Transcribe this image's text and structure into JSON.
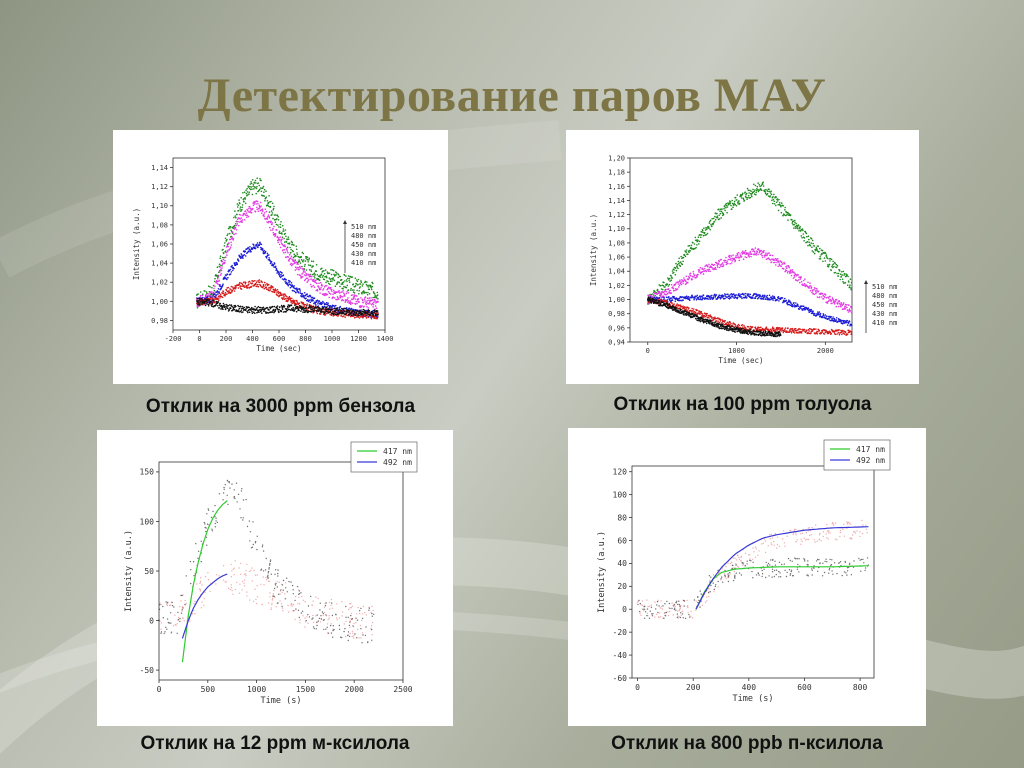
{
  "title": "Детектирование паров МАУ",
  "captions": [
    "Отклик на 3000 ppm бензола",
    "Отклик на 100 ppm толуола",
    "Отклик на 12 ppm м-ксилола",
    "Отклик на 800 ppb п-ксилола"
  ],
  "colors": {
    "title": "#7d7545",
    "green": "#1d8a1d",
    "magenta": "#e23ae2",
    "blue": "#1c1cd6",
    "red": "#d41a1a",
    "black": "#111111",
    "fit_green": "#2ecc2e",
    "fit_blue": "#3a3ad8"
  },
  "chart_data": [
    {
      "type": "scatter",
      "xlabel": "Time (sec)",
      "ylabel": "Intensity (a.u.)",
      "xlim": [
        -200,
        1400
      ],
      "ylim": [
        0.97,
        1.15
      ],
      "xticks": [
        -200,
        0,
        200,
        400,
        600,
        800,
        1000,
        1200,
        1400
      ],
      "yticks": [
        0.98,
        1.0,
        1.02,
        1.04,
        1.06,
        1.08,
        1.1,
        1.12,
        1.14
      ],
      "legend": {
        "position": "right",
        "items": [
          "510 nm",
          "480 nm",
          "450 nm",
          "430 nm",
          "410 nm"
        ]
      },
      "series": [
        {
          "name": "510 nm",
          "color": "green",
          "x": [
            -20,
            100,
            200,
            300,
            400,
            450,
            500,
            600,
            700,
            800,
            900,
            1000,
            1100,
            1200,
            1350
          ],
          "y": [
            1.0,
            1.01,
            1.06,
            1.1,
            1.12,
            1.122,
            1.11,
            1.08,
            1.055,
            1.04,
            1.03,
            1.025,
            1.02,
            1.015,
            1.01
          ]
        },
        {
          "name": "480 nm",
          "color": "magenta",
          "x": [
            -20,
            100,
            200,
            300,
            400,
            450,
            500,
            600,
            700,
            800,
            900,
            1000,
            1100,
            1200,
            1350
          ],
          "y": [
            1.0,
            1.005,
            1.05,
            1.085,
            1.098,
            1.1,
            1.09,
            1.065,
            1.04,
            1.025,
            1.015,
            1.008,
            1.005,
            1.0,
            0.997
          ]
        },
        {
          "name": "450 nm",
          "color": "blue",
          "x": [
            -20,
            100,
            200,
            300,
            400,
            450,
            500,
            600,
            700,
            800,
            900,
            1000,
            1100,
            1200,
            1350
          ],
          "y": [
            1.0,
            1.002,
            1.025,
            1.045,
            1.057,
            1.06,
            1.05,
            1.03,
            1.015,
            1.005,
            0.998,
            0.993,
            0.99,
            0.988,
            0.986
          ]
        },
        {
          "name": "430 nm",
          "color": "red",
          "x": [
            -20,
            100,
            200,
            300,
            400,
            450,
            500,
            600,
            700,
            800,
            900,
            1000,
            1100,
            1200,
            1350
          ],
          "y": [
            1.0,
            1.0,
            1.01,
            1.016,
            1.018,
            1.019,
            1.016,
            1.008,
            1.0,
            0.994,
            0.99,
            0.988,
            0.987,
            0.986,
            0.985
          ]
        },
        {
          "name": "410 nm",
          "color": "black",
          "x": [
            -20,
            100,
            200,
            300,
            400,
            450,
            500,
            600,
            700,
            800,
            900,
            1000,
            1100,
            1200,
            1350
          ],
          "y": [
            1.0,
            0.998,
            0.994,
            0.992,
            0.991,
            0.991,
            0.991,
            0.992,
            0.993,
            0.992,
            0.991,
            0.99,
            0.989,
            0.988,
            0.988
          ]
        }
      ]
    },
    {
      "type": "scatter",
      "xlabel": "Time (sec)",
      "ylabel": "Intensity (a.u.)",
      "xlim": [
        -200,
        2300
      ],
      "ylim": [
        0.94,
        1.2
      ],
      "xticks": [
        0,
        1000,
        2000
      ],
      "yticks": [
        0.94,
        0.96,
        0.98,
        1.0,
        1.02,
        1.04,
        1.06,
        1.08,
        1.1,
        1.12,
        1.14,
        1.16,
        1.18,
        1.2
      ],
      "legend": {
        "position": "right",
        "items": [
          "510 nm",
          "480 nm",
          "450 nm",
          "430 nm",
          "410 nm"
        ]
      },
      "series": [
        {
          "name": "510 nm",
          "color": "green",
          "x": [
            0,
            200,
            400,
            600,
            800,
            1000,
            1200,
            1300,
            1500,
            1700,
            1900,
            2100,
            2300
          ],
          "y": [
            1.0,
            1.02,
            1.06,
            1.09,
            1.12,
            1.14,
            1.155,
            1.16,
            1.13,
            1.1,
            1.07,
            1.045,
            1.02
          ]
        },
        {
          "name": "480 nm",
          "color": "magenta",
          "x": [
            0,
            200,
            400,
            600,
            800,
            1000,
            1200,
            1300,
            1500,
            1700,
            1900,
            2100,
            2300
          ],
          "y": [
            1.0,
            1.01,
            1.025,
            1.04,
            1.05,
            1.06,
            1.067,
            1.065,
            1.05,
            1.03,
            1.01,
            0.995,
            0.985
          ]
        },
        {
          "name": "450 nm",
          "color": "blue",
          "x": [
            0,
            200,
            400,
            600,
            800,
            1000,
            1200,
            1300,
            1500,
            1700,
            1900,
            2100,
            2300
          ],
          "y": [
            1.0,
            1.0,
            1.002,
            1.003,
            1.004,
            1.005,
            1.005,
            1.004,
            1.0,
            0.99,
            0.98,
            0.972,
            0.965
          ]
        },
        {
          "name": "430 nm",
          "color": "red",
          "x": [
            0,
            200,
            400,
            600,
            800,
            1000,
            1200,
            1300,
            1500,
            1700,
            1900,
            2100,
            2300
          ],
          "y": [
            1.0,
            0.995,
            0.988,
            0.98,
            0.97,
            0.962,
            0.958,
            0.958,
            0.957,
            0.956,
            0.955,
            0.954,
            0.953
          ]
        },
        {
          "name": "410 nm",
          "color": "black",
          "x": [
            0,
            200,
            400,
            600,
            800,
            1000,
            1200,
            1300,
            1500
          ],
          "y": [
            1.0,
            0.992,
            0.982,
            0.972,
            0.963,
            0.957,
            0.953,
            0.952,
            0.951
          ]
        }
      ]
    },
    {
      "type": "scatter",
      "xlabel": "Time (s)",
      "ylabel": "Intensity (a.u.)",
      "xlim": [
        0,
        2500
      ],
      "ylim": [
        -60,
        160
      ],
      "xticks": [
        0,
        500,
        1000,
        1500,
        2000,
        2500
      ],
      "yticks": [
        -50,
        0,
        50,
        100,
        150
      ],
      "legend": {
        "position": "top-right",
        "items": [
          "417 nm",
          "492 nm"
        ]
      },
      "series": [
        {
          "name": "417 nm",
          "color": "fit_green",
          "x": [
            240,
            300,
            350,
            400,
            450,
            500,
            550,
            600,
            650,
            700
          ],
          "y": [
            -42,
            5,
            35,
            58,
            77,
            92,
            103,
            111,
            117,
            121
          ]
        },
        {
          "name": "492 nm",
          "color": "fit_blue",
          "x": [
            240,
            300,
            350,
            400,
            450,
            500,
            550,
            600,
            650,
            700
          ],
          "y": [
            -18,
            0,
            12,
            21,
            28,
            34,
            38,
            42,
            45,
            47
          ]
        }
      ],
      "scatter_series": [
        {
          "color": "black",
          "x": [
            0,
            200,
            300,
            500,
            700,
            800,
            900,
            1000,
            1200,
            1500,
            1800,
            2000,
            2200
          ],
          "y": [
            0,
            2,
            40,
            95,
            125,
            130,
            105,
            70,
            35,
            10,
            0,
            -5,
            -5
          ]
        },
        {
          "color": "red",
          "x": [
            0,
            200,
            400,
            600,
            800,
            1000,
            1200,
            1500,
            2000,
            2200
          ],
          "y": [
            0,
            5,
            25,
            40,
            45,
            35,
            25,
            10,
            0,
            0
          ]
        }
      ]
    },
    {
      "type": "scatter",
      "xlabel": "Time (s)",
      "ylabel": "Intensity (a.u.)",
      "xlim": [
        -20,
        850
      ],
      "ylim": [
        -60,
        125
      ],
      "xticks": [
        0,
        200,
        400,
        600,
        800
      ],
      "yticks": [
        -60,
        -40,
        -20,
        0,
        20,
        40,
        60,
        80,
        100,
        120
      ],
      "legend": {
        "position": "top-right",
        "items": [
          "417 nm",
          "492 nm"
        ]
      },
      "series": [
        {
          "name": "417 nm",
          "color": "fit_green",
          "x": [
            210,
            240,
            270,
            300,
            350,
            400,
            500,
            600,
            700,
            830
          ],
          "y": [
            0,
            15,
            26,
            32,
            35,
            36,
            37,
            37,
            37,
            38
          ]
        },
        {
          "name": "492 nm",
          "color": "fit_blue",
          "x": [
            210,
            240,
            270,
            300,
            350,
            400,
            450,
            500,
            600,
            700,
            830
          ],
          "y": [
            0,
            14,
            26,
            36,
            48,
            56,
            62,
            65,
            69,
            71,
            72
          ]
        }
      ],
      "scatter_series": [
        {
          "color": "black",
          "x": [
            0,
            100,
            200,
            250,
            300,
            400,
            500,
            600,
            700,
            830
          ],
          "y": [
            0,
            0,
            0,
            20,
            30,
            35,
            36,
            37,
            37,
            38
          ]
        },
        {
          "color": "red",
          "x": [
            0,
            100,
            200,
            250,
            300,
            400,
            500,
            600,
            700,
            830
          ],
          "y": [
            0,
            0,
            0,
            15,
            30,
            50,
            60,
            65,
            68,
            70
          ]
        }
      ]
    }
  ]
}
